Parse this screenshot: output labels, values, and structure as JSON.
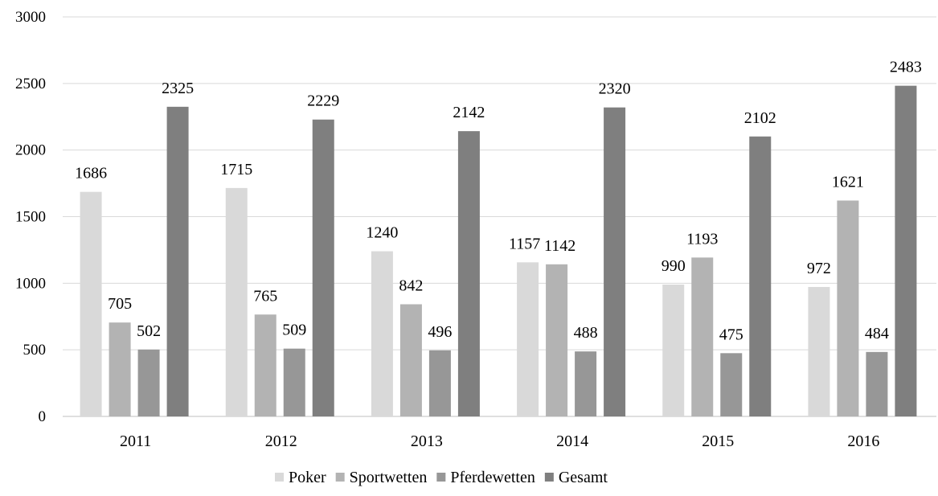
{
  "chart_data": {
    "type": "bar",
    "categories": [
      "2011",
      "2012",
      "2013",
      "2014",
      "2015",
      "2016"
    ],
    "series": [
      {
        "name": "Poker",
        "values": [
          1686,
          1715,
          1240,
          1157,
          990,
          972
        ],
        "color": "#d9d9d9"
      },
      {
        "name": "Sportwetten",
        "values": [
          705,
          765,
          842,
          1142,
          1193,
          1621
        ],
        "color": "#b3b3b3"
      },
      {
        "name": "Pferdewetten",
        "values": [
          502,
          509,
          496,
          488,
          475,
          484
        ],
        "color": "#979797"
      },
      {
        "name": "Gesamt",
        "values": [
          2325,
          2229,
          2142,
          2320,
          2102,
          2483
        ],
        "color": "#7f7f7f"
      }
    ],
    "yticks": [
      0,
      500,
      1000,
      1500,
      2000,
      2500,
      3000
    ],
    "ylim": [
      0,
      3000
    ],
    "grid": true,
    "legend_position": "bottom",
    "data_labels": true
  }
}
